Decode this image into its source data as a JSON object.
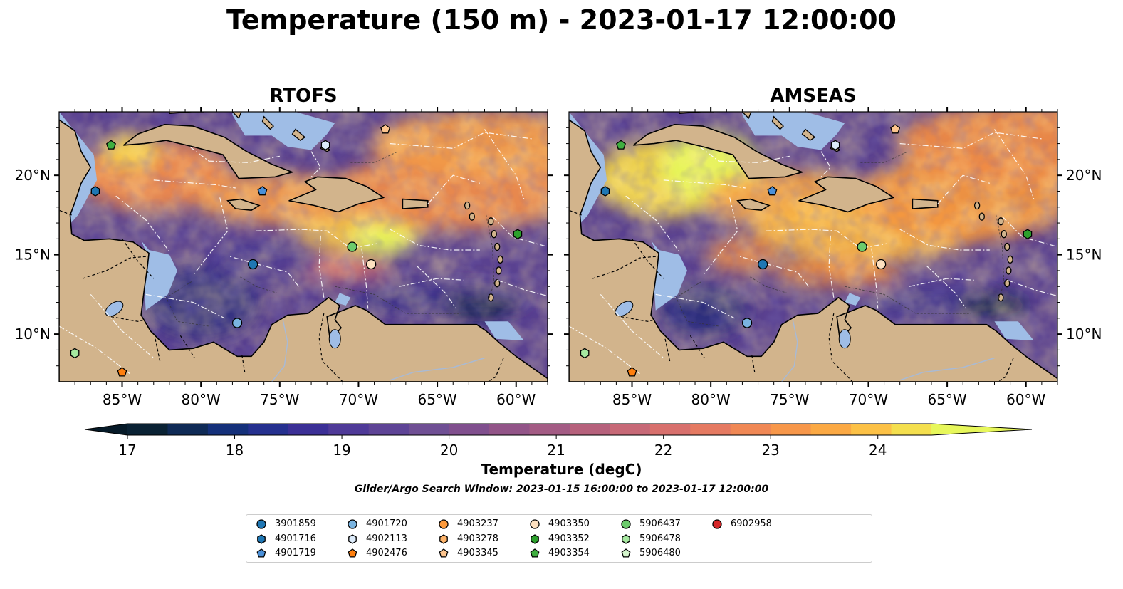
{
  "title": "Temperature (150 m) - 2023-01-17 12:00:00",
  "panels": [
    {
      "title": "RTOFS",
      "theme": "rtofs"
    },
    {
      "title": "AMSEAS",
      "theme": "amseas"
    }
  ],
  "axes": {
    "lon_ticks": [
      "85°W",
      "80°W",
      "75°W",
      "70°W",
      "65°W",
      "60°W"
    ],
    "lat_ticks": [
      "20°N",
      "15°N",
      "10°N"
    ],
    "lon_range": [
      -89,
      -58
    ],
    "lat_range": [
      7,
      24
    ]
  },
  "colorbar": {
    "label": "Temperature (degC)",
    "ticks": [
      "17",
      "18",
      "19",
      "20",
      "21",
      "22",
      "23",
      "24"
    ],
    "range": [
      17,
      24.5
    ],
    "colors": [
      "#0a2234",
      "#0f2a56",
      "#14307a",
      "#25308f",
      "#3b2f96",
      "#4f3a98",
      "#5e4496",
      "#6f4f94",
      "#804f8e",
      "#925488",
      "#a35b84",
      "#b6617c",
      "#c76977",
      "#d8706d",
      "#e57a62",
      "#f08855",
      "#f7974a",
      "#fba944",
      "#fcc146",
      "#f4df4e"
    ],
    "under_color": "#061a28",
    "over_color": "#e7f75b"
  },
  "search_window": "Glider/Argo Search Window: 2023-01-15 16:00:00 to 2023-01-17 12:00:00",
  "land_color": "#d2b48c",
  "shelf_color": "#9fbde6",
  "legend": [
    {
      "id": "3901859",
      "marker": "circle",
      "color": "#1f77b4"
    },
    {
      "id": "4901716",
      "marker": "hexagon",
      "color": "#1f77b4"
    },
    {
      "id": "4901719",
      "marker": "pentagon",
      "color": "#4a90d9"
    },
    {
      "id": "4901720",
      "marker": "circle",
      "color": "#7ab4e0"
    },
    {
      "id": "4902113",
      "marker": "hexagon",
      "color": "#dcebfa"
    },
    {
      "id": "4902476",
      "marker": "pentagon",
      "color": "#ff7f0e"
    },
    {
      "id": "4903237",
      "marker": "circle",
      "color": "#fd9a3c"
    },
    {
      "id": "4903278",
      "marker": "hexagon",
      "color": "#fdb36a"
    },
    {
      "id": "4903345",
      "marker": "pentagon",
      "color": "#fdc58e"
    },
    {
      "id": "4903350",
      "marker": "circle",
      "color": "#fde0c0"
    },
    {
      "id": "4903352",
      "marker": "hexagon",
      "color": "#2ca02c"
    },
    {
      "id": "4903354",
      "marker": "pentagon",
      "color": "#3fae3f"
    },
    {
      "id": "5906437",
      "marker": "circle",
      "color": "#6ccb6c"
    },
    {
      "id": "5906478",
      "marker": "hexagon",
      "color": "#a6e8a0"
    },
    {
      "id": "5906480",
      "marker": "pentagon",
      "color": "#d4f5cc"
    },
    {
      "id": "6902958",
      "marker": "circle",
      "color": "#d62728"
    }
  ],
  "floats": [
    {
      "id": "3901859",
      "lon": -76.7,
      "lat": 14.4
    },
    {
      "id": "4901716",
      "lon": -86.7,
      "lat": 19.0
    },
    {
      "id": "4901719",
      "lon": -76.1,
      "lat": 19.0
    },
    {
      "id": "4901720",
      "lon": -77.7,
      "lat": 10.7
    },
    {
      "id": "4902113",
      "lon": -72.1,
      "lat": 21.9
    },
    {
      "id": "4902476",
      "lon": -85.0,
      "lat": 7.6
    },
    {
      "id": "4903345",
      "lon": -68.3,
      "lat": 22.9
    },
    {
      "id": "4903350",
      "lon": -69.2,
      "lat": 14.4
    },
    {
      "id": "4903352",
      "lon": -59.9,
      "lat": 16.3
    },
    {
      "id": "4903354",
      "lon": -85.7,
      "lat": 21.9
    },
    {
      "id": "5906437",
      "lon": -70.4,
      "lat": 15.5
    },
    {
      "id": "5906478",
      "lon": -88.0,
      "lat": 8.8
    }
  ]
}
